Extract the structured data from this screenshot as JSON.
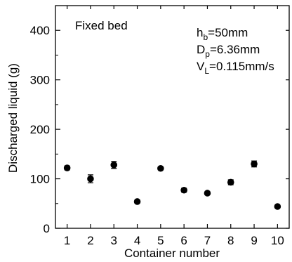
{
  "chart_data": {
    "type": "scatter",
    "title": "",
    "xlabel": "Container number",
    "ylabel": "Discharged liquid (g)",
    "x": [
      1,
      2,
      3,
      4,
      5,
      6,
      7,
      8,
      9,
      10
    ],
    "xticks": [
      "1",
      "2",
      "3",
      "4",
      "5",
      "6",
      "7",
      "8",
      "9",
      "10"
    ],
    "xlim": [
      0.5,
      10.5
    ],
    "ylim": [
      0,
      450
    ],
    "yticks": [
      0,
      100,
      200,
      300,
      400
    ],
    "ytick_labels": [
      "0",
      "100",
      "200",
      "300",
      "400"
    ],
    "grid": false,
    "legend": "none",
    "series": [
      {
        "values": [
          122,
          100,
          128,
          54,
          121,
          77,
          71,
          93,
          130,
          44
        ],
        "error": [
          4,
          8,
          7,
          3,
          3,
          4,
          3,
          5,
          6,
          2
        ],
        "marker": "filled-circle",
        "color": "#000000"
      }
    ],
    "annotations": {
      "condition_label": "Fixed bed",
      "parameters": [
        {
          "symbol": "h",
          "subscript": "b",
          "value": "=50mm"
        },
        {
          "symbol": "D",
          "subscript": "p",
          "value": "=6.36mm"
        },
        {
          "symbol": "V",
          "subscript": "L",
          "value": "=0.115mm/s"
        }
      ]
    }
  }
}
